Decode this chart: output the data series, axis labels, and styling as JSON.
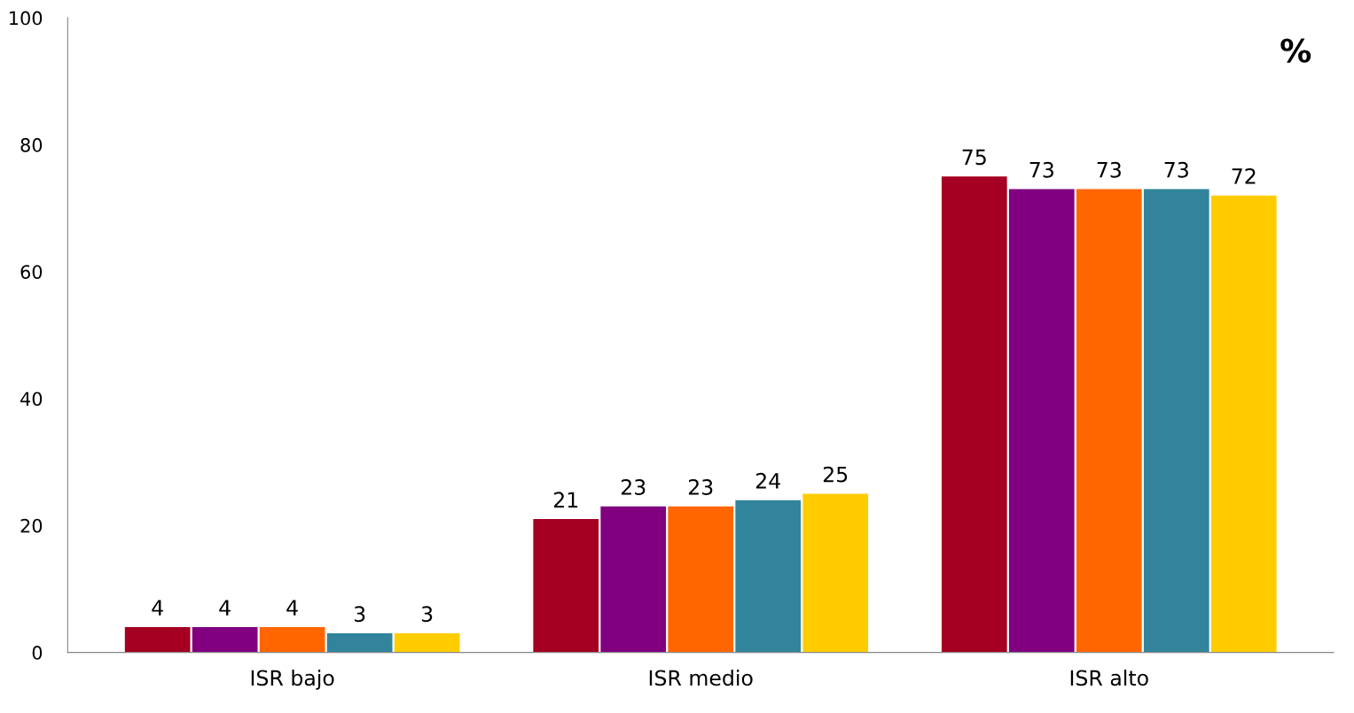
{
  "chart_data": {
    "type": "bar",
    "categories": [
      "ISR bajo",
      "ISR medio",
      "ISR alto"
    ],
    "series": [
      {
        "color": "#a50021",
        "values": [
          4,
          21,
          75
        ]
      },
      {
        "color": "#800080",
        "values": [
          4,
          23,
          73
        ]
      },
      {
        "color": "#ff6600",
        "values": [
          4,
          23,
          73
        ]
      },
      {
        "color": "#31849b",
        "values": [
          3,
          24,
          73
        ]
      },
      {
        "color": "#ffcc00",
        "values": [
          3,
          25,
          72
        ]
      }
    ],
    "ylim": [
      0,
      100
    ],
    "yticks": [
      0,
      20,
      40,
      60,
      80,
      100
    ],
    "grid": false,
    "data_labels": true,
    "annotations": [
      "%"
    ]
  }
}
